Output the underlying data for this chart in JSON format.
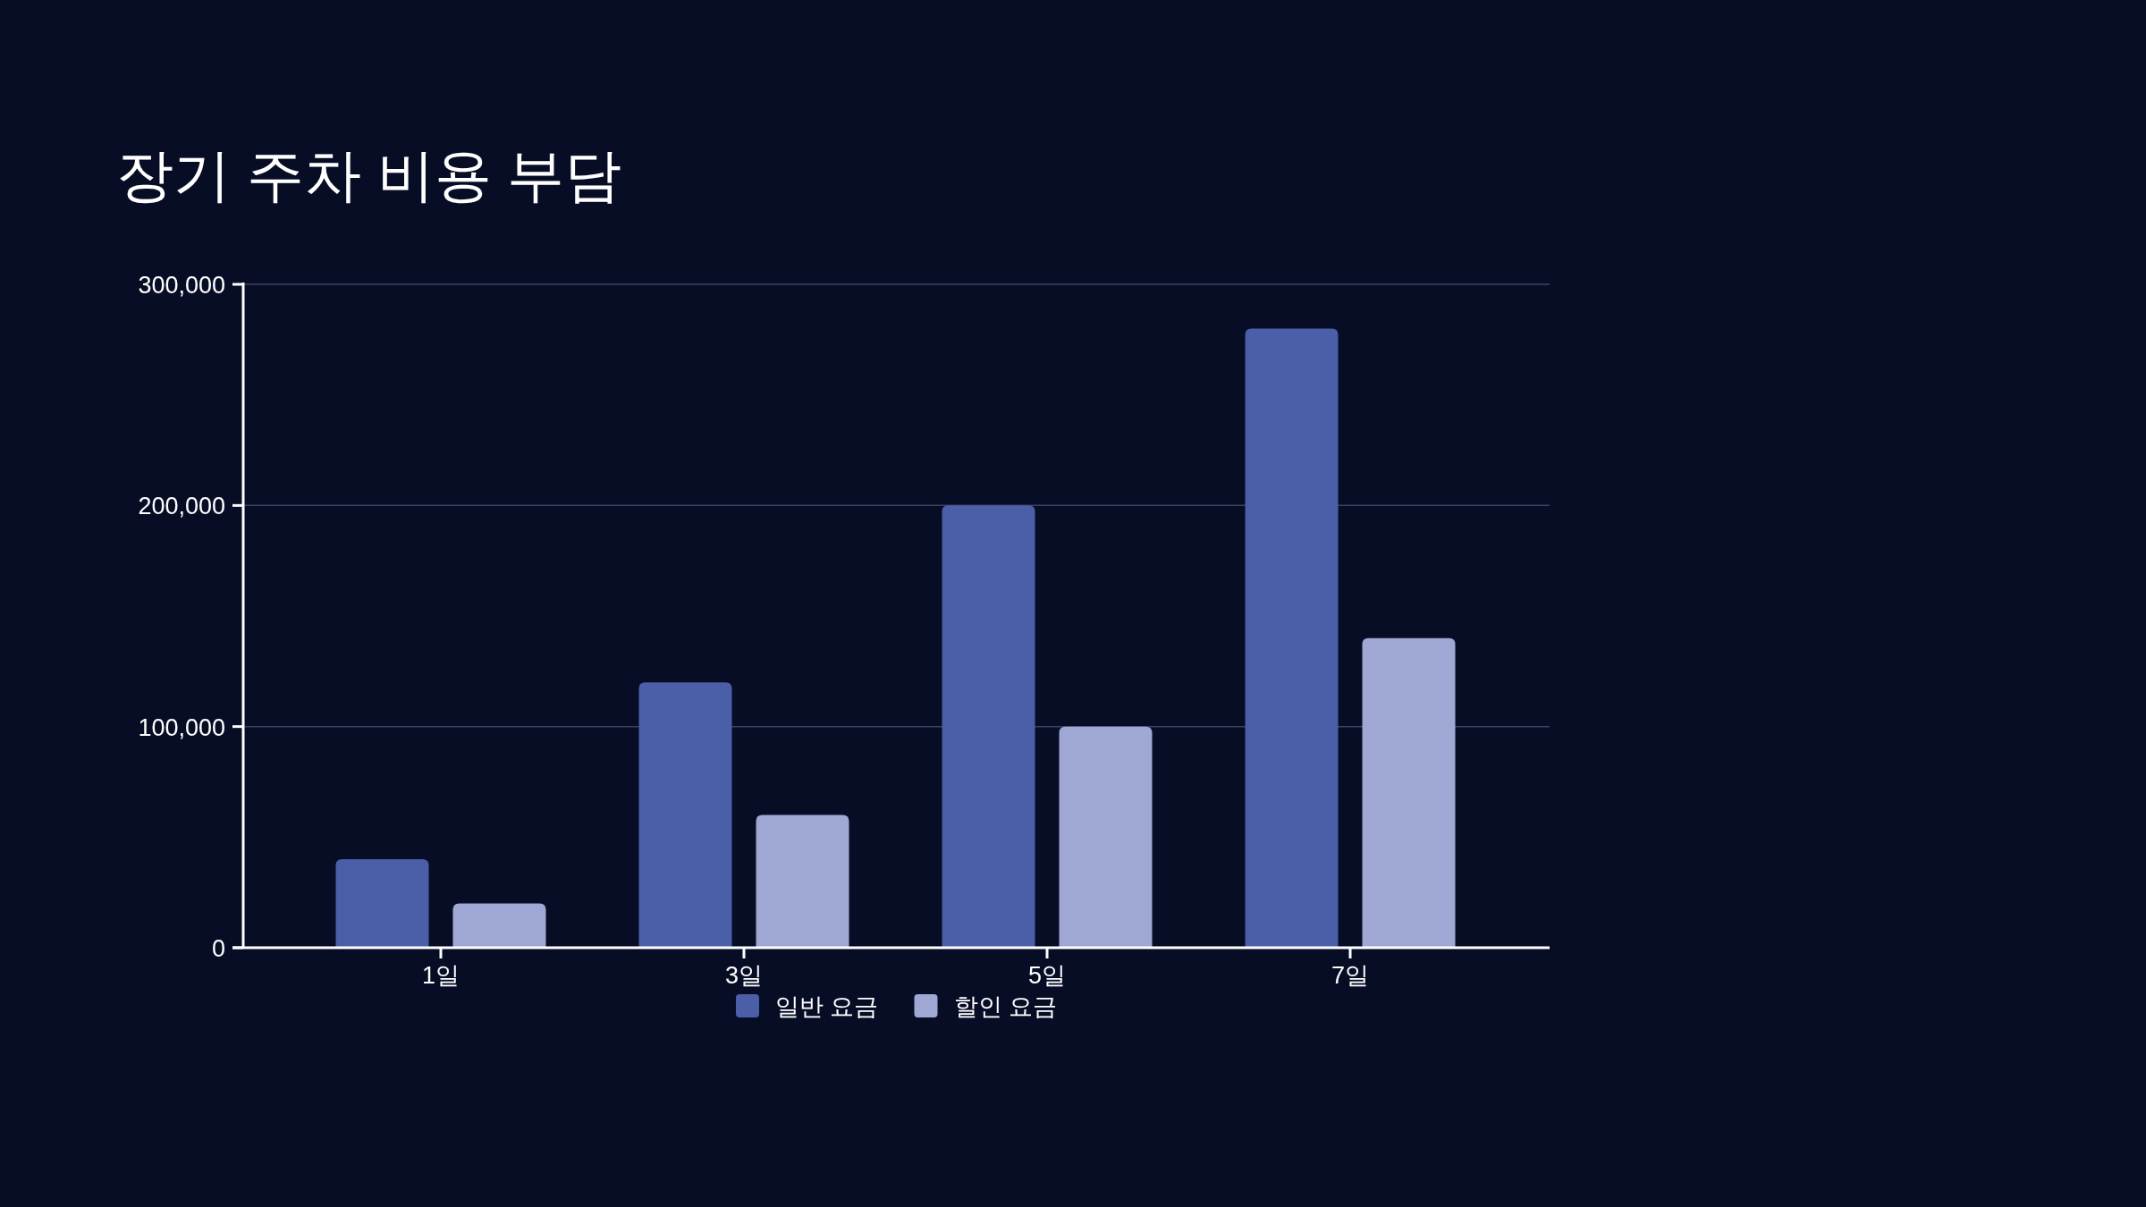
{
  "chart_data": {
    "type": "bar",
    "title": "장기 주차 비용 부담",
    "categories": [
      "1일",
      "3일",
      "5일",
      "7일"
    ],
    "series": [
      {
        "name": "일반 요금",
        "color": "#4b5ea8",
        "values": [
          40000,
          120000,
          200000,
          280000
        ]
      },
      {
        "name": "할인 요금",
        "color": "#9fa8d4",
        "values": [
          20000,
          60000,
          100000,
          140000
        ]
      }
    ],
    "ylim": [
      0,
      300000
    ],
    "yticks": [
      {
        "value": 0,
        "label": "0"
      },
      {
        "value": 100000,
        "label": "100,000"
      },
      {
        "value": 200000,
        "label": "200,000"
      },
      {
        "value": 300000,
        "label": "300,000"
      }
    ],
    "grid": "y",
    "legend": "bottom"
  }
}
